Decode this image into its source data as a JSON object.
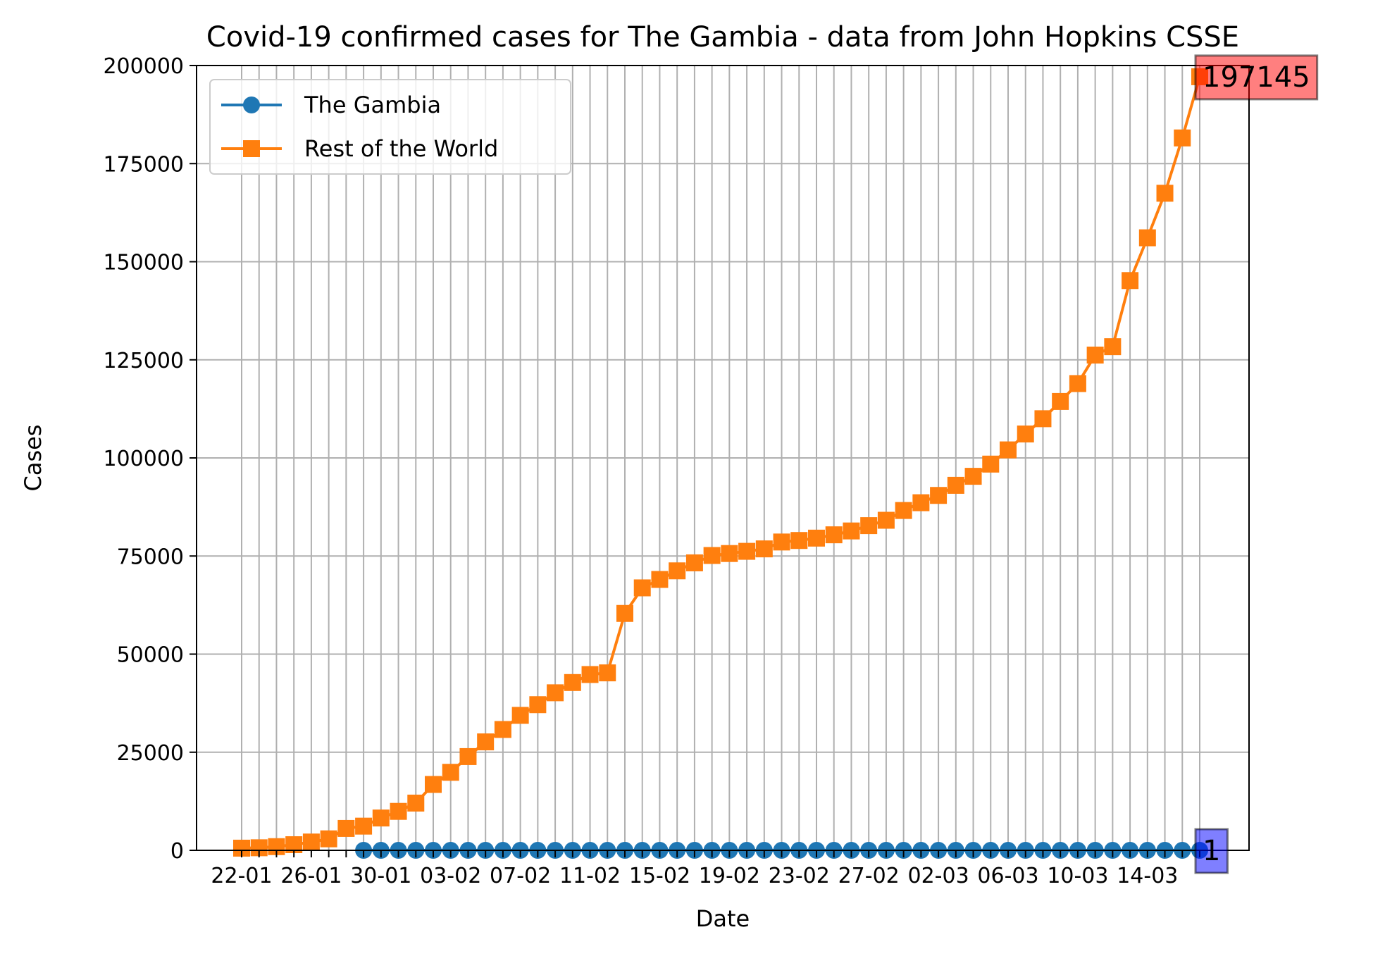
{
  "chart_data": {
    "type": "line",
    "title": "Covid-19 confirmed cases for The Gambia - data from John Hopkins CSSE",
    "xlabel": "Date",
    "ylabel": "Cases",
    "ylim": [
      0,
      200000
    ],
    "yticks": [
      0,
      25000,
      50000,
      75000,
      100000,
      125000,
      150000,
      175000,
      200000
    ],
    "x_tick_labels": [
      "22-01",
      "26-01",
      "30-01",
      "03-02",
      "07-02",
      "11-02",
      "15-02",
      "19-02",
      "23-02",
      "27-02",
      "02-03",
      "06-03",
      "10-03",
      "14-03"
    ],
    "x": [
      "22-01",
      "23-01",
      "24-01",
      "25-01",
      "26-01",
      "27-01",
      "28-01",
      "29-01",
      "30-01",
      "31-01",
      "01-02",
      "02-02",
      "03-02",
      "04-02",
      "05-02",
      "06-02",
      "07-02",
      "08-02",
      "09-02",
      "10-02",
      "11-02",
      "12-02",
      "13-02",
      "14-02",
      "15-02",
      "16-02",
      "17-02",
      "18-02",
      "19-02",
      "20-02",
      "21-02",
      "22-02",
      "23-02",
      "24-02",
      "25-02",
      "26-02",
      "27-02",
      "28-02",
      "29-02",
      "01-03",
      "02-03",
      "03-03",
      "04-03",
      "05-03",
      "06-03",
      "07-03",
      "08-03",
      "09-03",
      "10-03",
      "11-03",
      "12-03",
      "13-03",
      "14-03",
      "15-03",
      "16-03",
      "17-03"
    ],
    "grid": true,
    "legend_position": "upper-left",
    "series": [
      {
        "name": "The Gambia",
        "color": "#1f77b4",
        "marker": "circle",
        "values": [
          null,
          null,
          null,
          null,
          null,
          null,
          null,
          0,
          0,
          0,
          0,
          0,
          0,
          0,
          0,
          0,
          0,
          0,
          0,
          0,
          0,
          0,
          0,
          0,
          0,
          0,
          0,
          0,
          0,
          0,
          0,
          0,
          0,
          0,
          0,
          0,
          0,
          0,
          0,
          0,
          0,
          0,
          0,
          0,
          0,
          0,
          0,
          0,
          0,
          0,
          0,
          0,
          0,
          0,
          0,
          1
        ]
      },
      {
        "name": "Rest of the World",
        "color": "#ff7f0e",
        "marker": "square",
        "values": [
          555,
          654,
          941,
          1434,
          2118,
          2927,
          5578,
          6166,
          8234,
          9927,
          12038,
          16787,
          19881,
          23892,
          27635,
          30794,
          34391,
          37120,
          40150,
          42762,
          44802,
          45221,
          60368,
          66885,
          69030,
          71224,
          73258,
          75136,
          75639,
          76197,
          76819,
          78572,
          78958,
          79561,
          80406,
          81388,
          82746,
          84112,
          86604,
          88585,
          90443,
          93016,
          95314,
          98425,
          102050,
          106099,
          109991,
          114381,
          118948,
          126214,
          128343,
          145193,
          156097,
          167449,
          181546,
          197145
        ]
      }
    ],
    "annotations": [
      {
        "text": "197145",
        "series": "Rest of the World",
        "color": "#ff0000"
      },
      {
        "text": "1",
        "series": "The Gambia",
        "color": "#0000ff"
      }
    ]
  }
}
